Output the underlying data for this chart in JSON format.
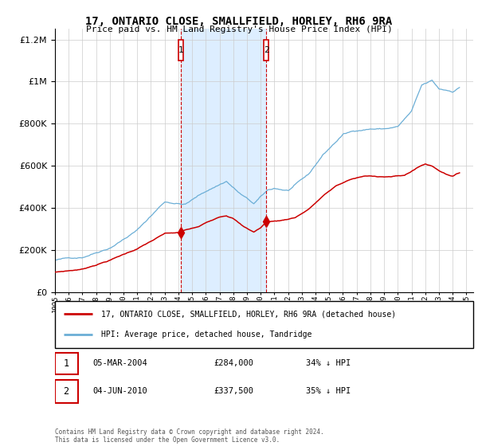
{
  "title": "17, ONTARIO CLOSE, SMALLFIELD, HORLEY, RH6 9RA",
  "subtitle": "Price paid vs. HM Land Registry's House Price Index (HPI)",
  "legend_line1": "17, ONTARIO CLOSE, SMALLFIELD, HORLEY, RH6 9RA (detached house)",
  "legend_line2": "HPI: Average price, detached house, Tandridge",
  "transaction1_label": "1",
  "transaction1_date": "05-MAR-2004",
  "transaction1_price": "£284,000",
  "transaction1_hpi": "34% ↓ HPI",
  "transaction2_label": "2",
  "transaction2_date": "04-JUN-2010",
  "transaction2_price": "£337,500",
  "transaction2_hpi": "35% ↓ HPI",
  "footer": "Contains HM Land Registry data © Crown copyright and database right 2024.\nThis data is licensed under the Open Government Licence v3.0.",
  "hpi_color": "#6baed6",
  "price_color": "#cc0000",
  "marker_bg": "#ddeeff",
  "marker1_x": 2004.17,
  "marker2_x": 2010.42,
  "ylim_max": 1250000,
  "xlim_min": 1995,
  "xlim_max": 2025.5
}
